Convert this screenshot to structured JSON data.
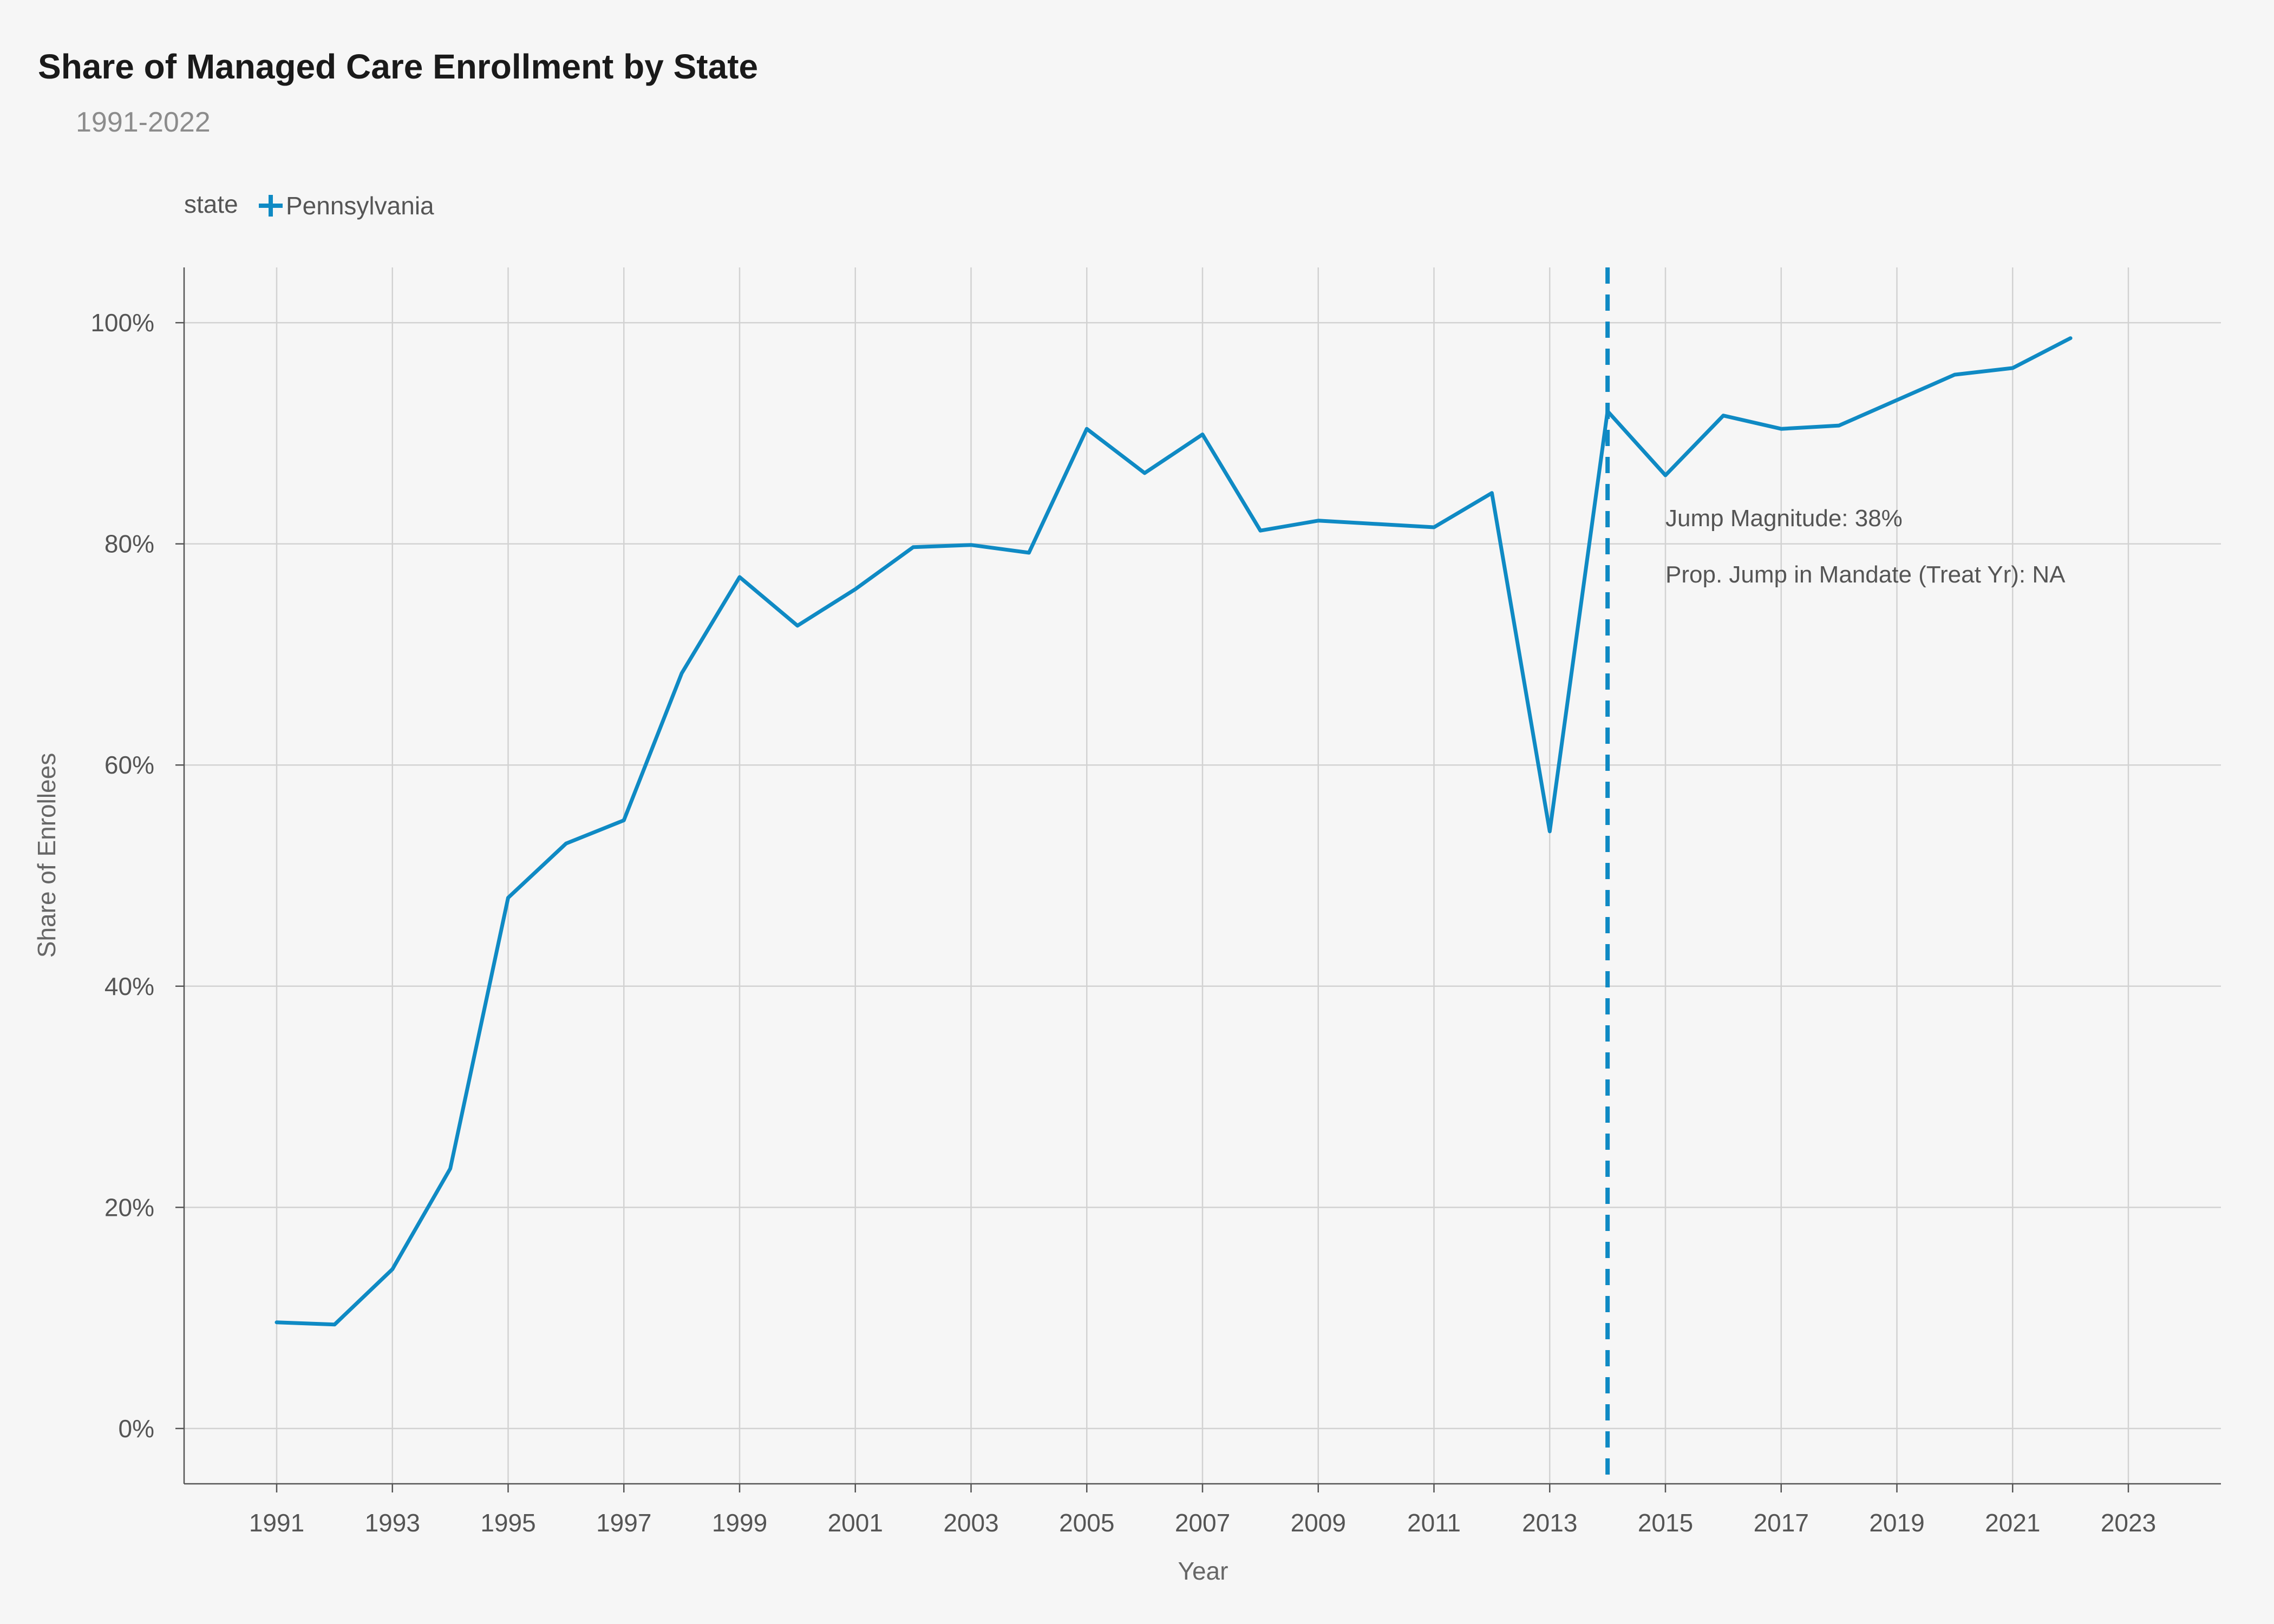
{
  "chart_data": {
    "type": "line",
    "title": "Share of Managed Care Enrollment by State",
    "subtitle": "1991-2022",
    "xlabel": "Year",
    "ylabel": "Share of Enrollees",
    "legend": {
      "title": "state",
      "position": "top-left"
    },
    "xlim": [
      1989.4,
      2024.6
    ],
    "ylim": [
      -5,
      105
    ],
    "x_ticks": [
      1991,
      1993,
      1995,
      1997,
      1999,
      2001,
      2003,
      2005,
      2007,
      2009,
      2011,
      2013,
      2015,
      2017,
      2019,
      2021,
      2023
    ],
    "y_ticks": [
      0,
      20,
      40,
      60,
      80,
      100
    ],
    "y_tick_labels": [
      "0%",
      "20%",
      "40%",
      "60%",
      "80%",
      "100%"
    ],
    "grid": true,
    "series": [
      {
        "name": "Pennsylvania",
        "color": "#0f8ac4",
        "x": [
          1991,
          1992,
          1993,
          1994,
          1995,
          1996,
          1997,
          1998,
          1999,
          2000,
          2001,
          2002,
          2003,
          2004,
          2005,
          2006,
          2007,
          2008,
          2009,
          2010,
          2011,
          2012,
          2013,
          2014,
          2015,
          2016,
          2017,
          2018,
          2019,
          2020,
          2021,
          2022
        ],
        "y": [
          9.6,
          9.4,
          14.4,
          23.5,
          48.0,
          52.9,
          55.0,
          68.3,
          77.0,
          72.6,
          75.9,
          79.7,
          79.9,
          79.2,
          90.4,
          86.4,
          89.9,
          81.2,
          82.1,
          81.8,
          81.5,
          84.6,
          54.0,
          92.0,
          86.2,
          91.6,
          90.4,
          90.7,
          93.0,
          95.3,
          95.9,
          98.6
        ]
      }
    ],
    "vline": {
      "x": 2014,
      "style": "dashed",
      "color": "#0f8ac4"
    },
    "annotations": [
      {
        "text": "Jump Magnitude: 38%",
        "x": 2015,
        "y": 81.6
      },
      {
        "text": "Prop. Jump in Mandate (Treat Yr): NA",
        "x": 2015,
        "y": 76.5
      }
    ]
  }
}
